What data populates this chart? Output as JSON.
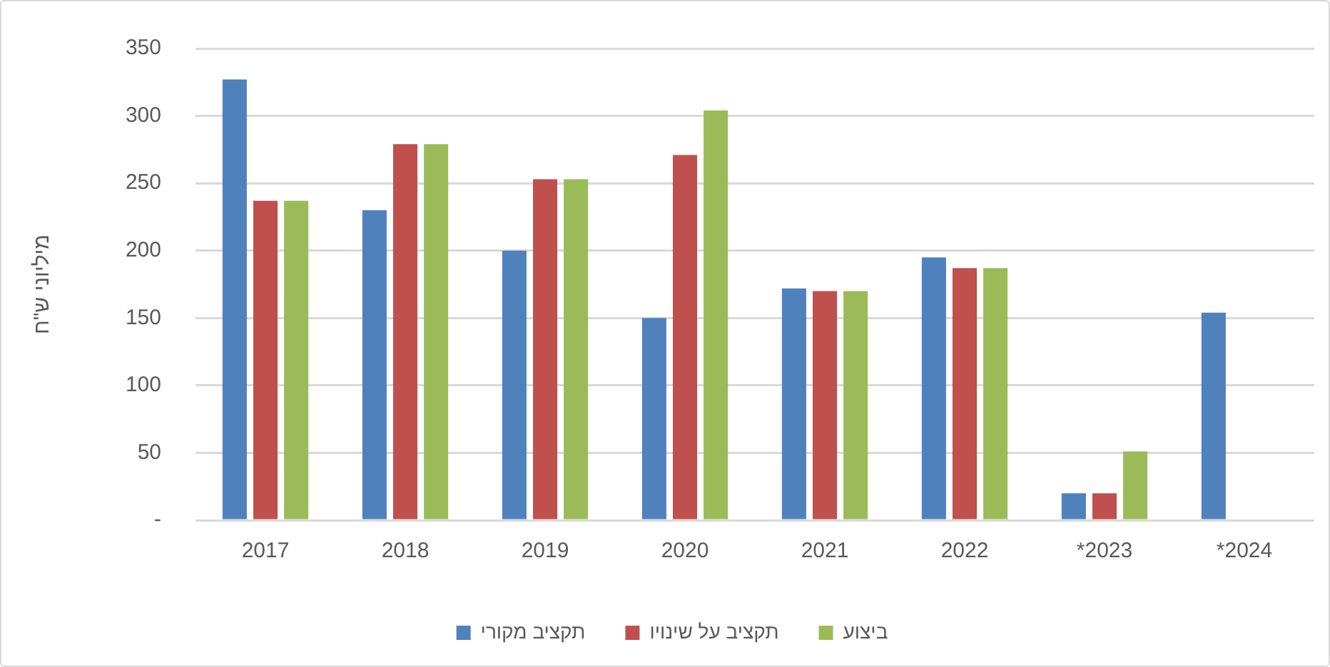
{
  "chart_data": {
    "type": "bar",
    "ylabel": "מיליוני ש\"ח",
    "categories": [
      "2017",
      "2018",
      "2019",
      "2020",
      "2021",
      "2022",
      "*2023",
      "*2024"
    ],
    "series": [
      {
        "name": "תקציב מקורי",
        "color": "#4f81bd",
        "values": [
          327,
          230,
          200,
          150,
          172,
          195,
          20,
          154
        ]
      },
      {
        "name": "תקציב על שינויו",
        "color": "#c0504d",
        "values": [
          237,
          279,
          253,
          271,
          170,
          187,
          20,
          null
        ]
      },
      {
        "name": "ביצוע",
        "color": "#9bbb59",
        "values": [
          237,
          279,
          253,
          304,
          170,
          187,
          51,
          null
        ]
      }
    ],
    "ylim": [
      0,
      350
    ],
    "yticks": [
      {
        "value": 0,
        "label": "-"
      },
      50,
      100,
      150,
      200,
      250,
      300,
      350
    ],
    "grid": "y",
    "legend": "bottom"
  }
}
